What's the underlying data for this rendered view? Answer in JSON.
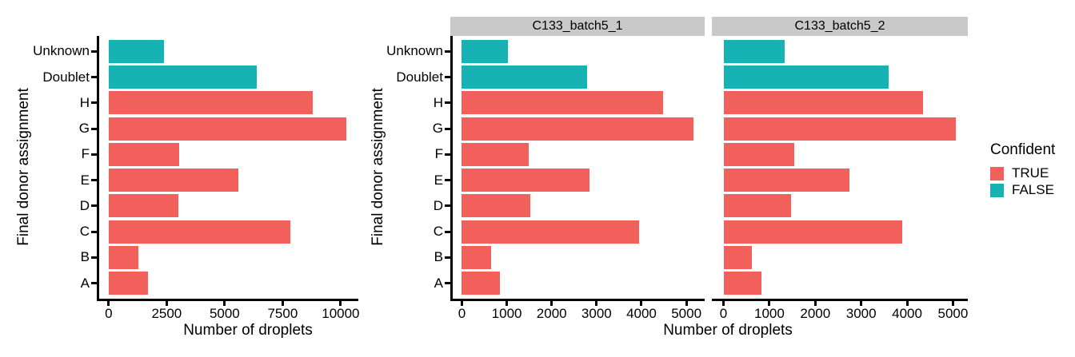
{
  "colors": {
    "confident_true": "#F2605B",
    "confident_false": "#17B3B4",
    "strip_background": "#C9C9C9",
    "axis_line": "#000000",
    "text": "#000000",
    "background": "#FFFFFF"
  },
  "shared": {
    "x_axis_title": "Number of droplets",
    "y_axis_title": "Final donor assignment",
    "categories": [
      "Unknown",
      "Doublet",
      "H",
      "G",
      "F",
      "E",
      "D",
      "C",
      "B",
      "A"
    ],
    "category_confident": [
      false,
      false,
      true,
      true,
      true,
      true,
      true,
      true,
      true,
      true
    ]
  },
  "legend": {
    "title": "Confident",
    "entries": [
      {
        "label": "TRUE",
        "confident": true,
        "color": "#F2605B"
      },
      {
        "label": "FALSE",
        "confident": false,
        "color": "#17B3B4"
      }
    ]
  },
  "chart_data": [
    {
      "type": "bar",
      "orientation": "horizontal",
      "xlabel": "Number of droplets",
      "ylabel": "Final donor assignment",
      "categories": [
        "Unknown",
        "Doublet",
        "H",
        "G",
        "F",
        "E",
        "D",
        "C",
        "B",
        "A"
      ],
      "confident": [
        false,
        false,
        true,
        true,
        true,
        true,
        true,
        true,
        true,
        true
      ],
      "values": [
        2400,
        6370,
        8790,
        10250,
        3040,
        5600,
        2990,
        7830,
        1280,
        1690
      ],
      "x_ticks": [
        0,
        2500,
        5000,
        7500,
        10000
      ],
      "xlim": [
        0,
        10250
      ],
      "grid": false,
      "legend_position": "none"
    },
    {
      "type": "bar",
      "orientation": "horizontal",
      "panel_title": "C133_batch5_1",
      "xlabel": "Number of droplets",
      "ylabel": "Final donor assignment",
      "categories": [
        "Unknown",
        "Doublet",
        "H",
        "G",
        "F",
        "E",
        "D",
        "C",
        "B",
        "A"
      ],
      "confident": [
        false,
        false,
        true,
        true,
        true,
        true,
        true,
        true,
        true,
        true
      ],
      "values": [
        1030,
        2790,
        4480,
        5150,
        1490,
        2840,
        1520,
        3950,
        650,
        850
      ],
      "x_ticks": [
        0,
        1000,
        2000,
        3000,
        4000,
        5000
      ],
      "xlim": [
        0,
        5150
      ],
      "grid": false,
      "legend_position": "right"
    },
    {
      "type": "bar",
      "orientation": "horizontal",
      "panel_title": "C133_batch5_2",
      "xlabel": "Number of droplets",
      "ylabel": "Final donor assignment",
      "categories": [
        "Unknown",
        "Doublet",
        "H",
        "G",
        "F",
        "E",
        "D",
        "C",
        "B",
        "A"
      ],
      "confident": [
        false,
        false,
        true,
        true,
        true,
        true,
        true,
        true,
        true,
        true
      ],
      "values": [
        1330,
        3600,
        4340,
        5070,
        1540,
        2740,
        1470,
        3890,
        610,
        820
      ],
      "x_ticks": [
        0,
        1000,
        2000,
        3000,
        4000,
        5000
      ],
      "xlim": [
        0,
        5070
      ],
      "grid": false,
      "legend_position": "right"
    }
  ]
}
